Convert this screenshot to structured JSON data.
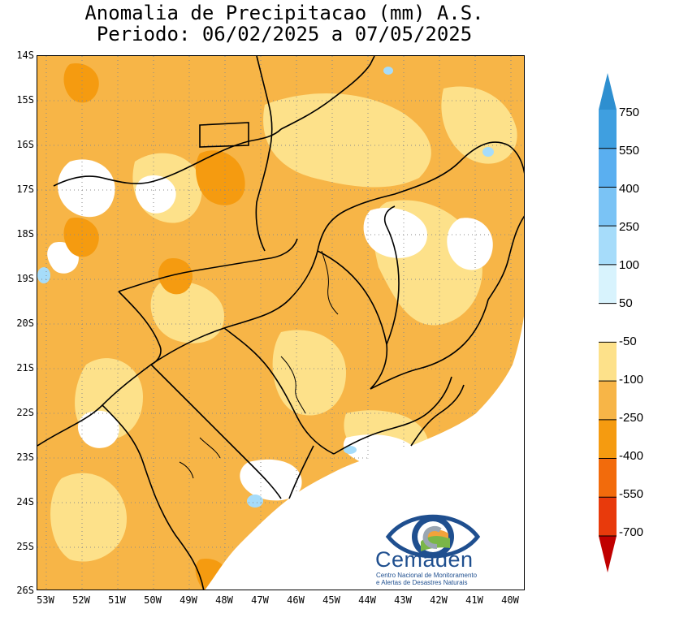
{
  "title": {
    "line1": "Anomalia de Precipitacao (mm) A.S.",
    "line2": "Periodo: 06/02/2025 a 07/05/2025"
  },
  "map": {
    "y_ticks": [
      "14S",
      "15S",
      "16S",
      "17S",
      "18S",
      "19S",
      "20S",
      "21S",
      "22S",
      "23S",
      "24S",
      "25S",
      "26S"
    ],
    "x_ticks": [
      "53W",
      "52W",
      "51W",
      "50W",
      "49W",
      "48W",
      "47W",
      "46W",
      "45W",
      "44W",
      "43W",
      "42W",
      "41W",
      "40W"
    ],
    "lat_range": [
      -26,
      -14
    ],
    "lon_range": [
      -53,
      -40
    ],
    "dominant_category": "-250 to -100",
    "grid": true
  },
  "colorbar": {
    "labels": [
      "750",
      "550",
      "400",
      "250",
      "100",
      "50",
      "-50",
      "-100",
      "-250",
      "-400",
      "-550",
      "-700"
    ],
    "colors": [
      "#2e8fd0",
      "#3f9fe0",
      "#5aaff0",
      "#7ac3f5",
      "#a6dcfa",
      "#d8f3fd",
      "#ffffff",
      "#fde18a",
      "#f7b547",
      "#f59b10",
      "#f26b0c",
      "#e83a0c",
      "#c00000"
    ]
  },
  "logo": {
    "name": "Cemaden",
    "subtitle1": "Centro Nacional de Monitoramento",
    "subtitle2": "e Alertas de Desastres Naturais",
    "colors": {
      "primary": "#1f4f8f",
      "accent_green": "#7ab648",
      "accent_orange": "#f2a33a"
    }
  }
}
